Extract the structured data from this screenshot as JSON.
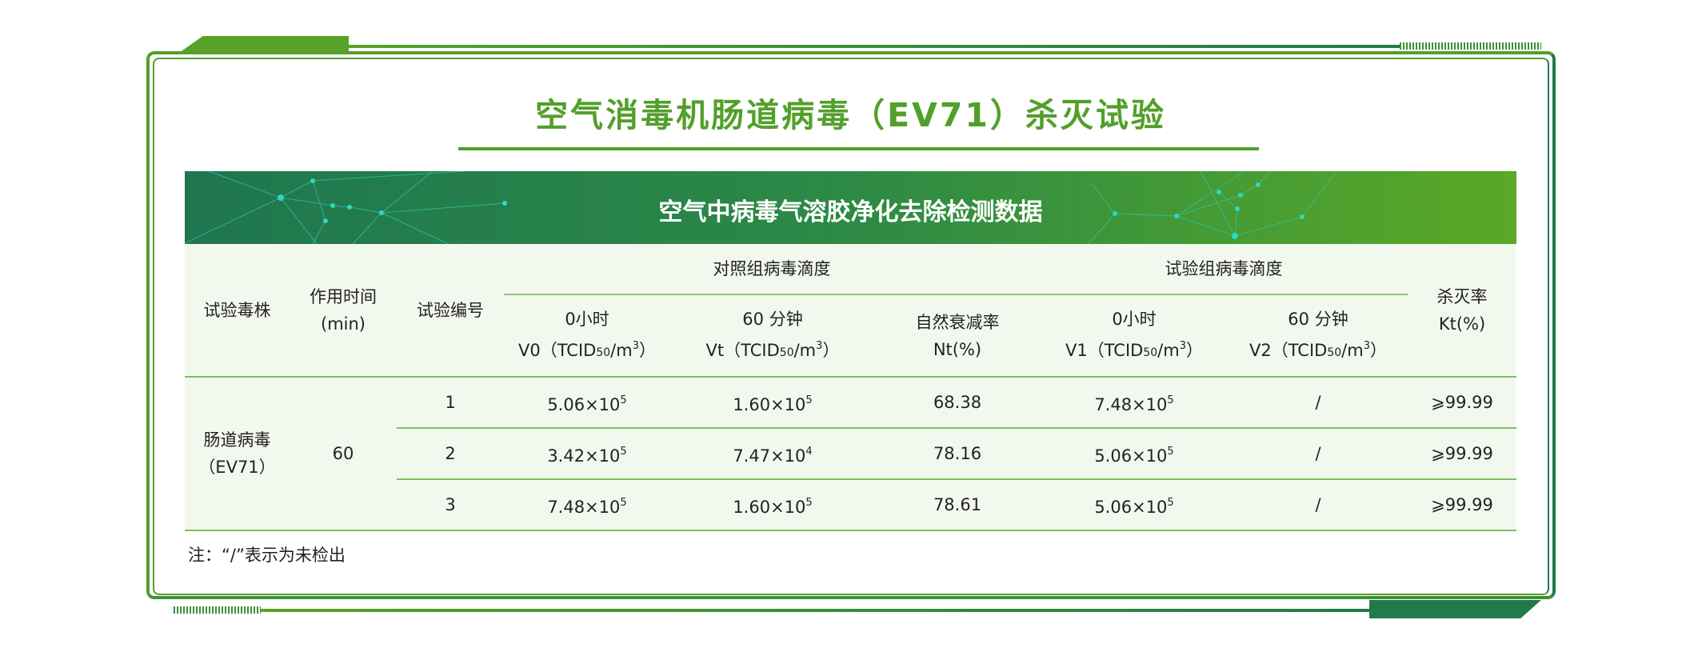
{
  "title": "空气消毒机肠道病毒（EV71）杀灭试验",
  "banner": "空气中病毒气溶胶净化去除检测数据",
  "colors": {
    "accent_light": "#52a02a",
    "accent_dark": "#217a4a",
    "table_bg": "#f3f8ef"
  },
  "headers": {
    "strain": "试验毒株",
    "time_line1": "作用时间",
    "time_line2": "(min)",
    "test_no": "试验编号",
    "control_group": "对照组病毒滴度",
    "test_group": "试验组病毒滴度",
    "kill_rate_line1": "杀灭率",
    "kill_rate_line2": "Kt(%)",
    "v0_line1": "0小时",
    "v0_prefix": "V0（TCID",
    "vt_line1": "60 分钟",
    "vt_prefix": "Vt（TCID",
    "nt_line1": "自然衰减率",
    "nt_line2": "Nt(%)",
    "v1_line1": "0小时",
    "v1_prefix": "V1（TCID",
    "v2_line1": "60 分钟",
    "v2_prefix": "V2（TCID",
    "sub50": "50",
    "unit_suffix": "/m",
    "exp3": "3",
    "close": "）"
  },
  "strain": {
    "line1": "肠道病毒",
    "line2": "（EV71）"
  },
  "time": "60",
  "rows": [
    {
      "no": "1",
      "v0": {
        "m": "5.06×10",
        "e": "5"
      },
      "vt": {
        "m": "1.60×10",
        "e": "5"
      },
      "nt": "68.38",
      "v1": {
        "m": "7.48×10",
        "e": "5"
      },
      "v2": "/",
      "kt": "⩾99.99"
    },
    {
      "no": "2",
      "v0": {
        "m": "3.42×10",
        "e": "5"
      },
      "vt": {
        "m": "7.47×10",
        "e": "4"
      },
      "nt": "78.16",
      "v1": {
        "m": "5.06×10",
        "e": "5"
      },
      "v2": "/",
      "kt": "⩾99.99"
    },
    {
      "no": "3",
      "v0": {
        "m": "7.48×10",
        "e": "5"
      },
      "vt": {
        "m": "1.60×10",
        "e": "5"
      },
      "nt": "78.61",
      "v1": {
        "m": "5.06×10",
        "e": "5"
      },
      "v2": "/",
      "kt": "⩾99.99"
    }
  ],
  "note": "注：“/”表示为未检出"
}
